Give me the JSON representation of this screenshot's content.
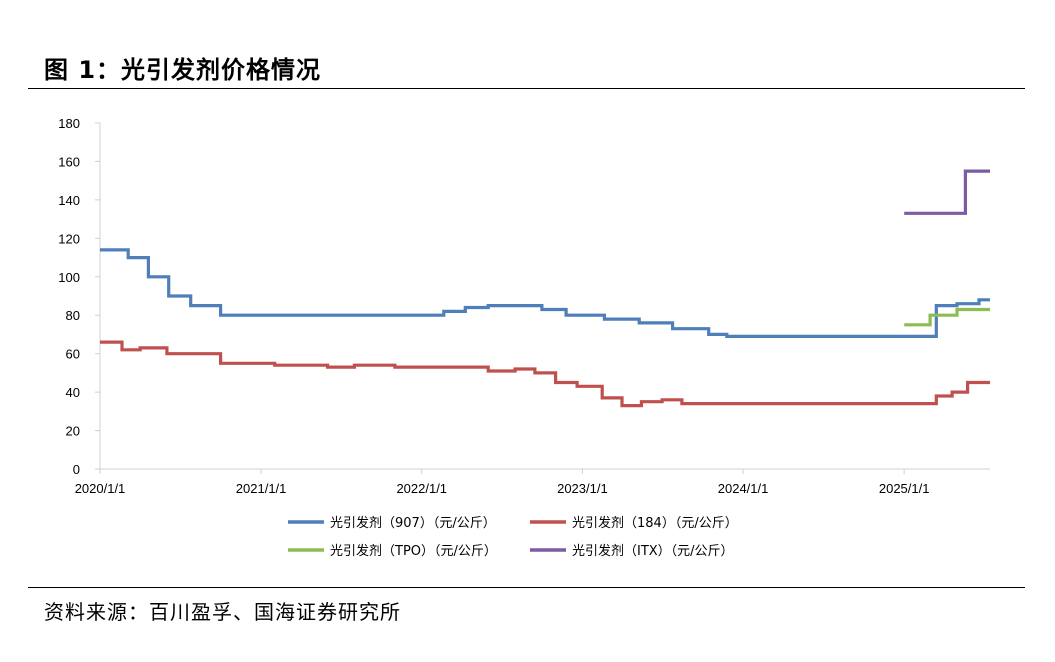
{
  "figure": {
    "title": "图 1：光引发剂价格情况",
    "source": "资料来源：百川盈孚、国海证券研究所"
  },
  "chart_data": {
    "type": "line",
    "title": "",
    "xlabel": "",
    "ylabel": "",
    "ylim": [
      0,
      180
    ],
    "yticks": [
      0,
      20,
      40,
      60,
      80,
      100,
      120,
      140,
      160,
      180
    ],
    "xlim": [
      "2020/1/1",
      "2025/7/15"
    ],
    "xticks": [
      "2020/1/1",
      "2021/1/1",
      "2022/1/1",
      "2023/1/1",
      "2024/1/1",
      "2025/1/1"
    ],
    "grid": false,
    "legend_position": "bottom",
    "series": [
      {
        "name": "光引发剂（907）（元/公斤）",
        "color": "#4e7fb8",
        "step": true,
        "points": [
          [
            "2020/1/1",
            114
          ],
          [
            "2020/3/5",
            110
          ],
          [
            "2020/4/20",
            100
          ],
          [
            "2020/6/5",
            90
          ],
          [
            "2020/7/25",
            85
          ],
          [
            "2020/10/1",
            80
          ],
          [
            "2021/12/5",
            80
          ],
          [
            "2022/2/20",
            82
          ],
          [
            "2022/4/10",
            84
          ],
          [
            "2022/6/1",
            85
          ],
          [
            "2022/10/1",
            83
          ],
          [
            "2022/11/25",
            80
          ],
          [
            "2023/2/20",
            78
          ],
          [
            "2023/5/10",
            76
          ],
          [
            "2023/7/25",
            73
          ],
          [
            "2023/10/15",
            70
          ],
          [
            "2023/11/25",
            69
          ],
          [
            "2025/3/1",
            69
          ],
          [
            "2025/3/15",
            85
          ],
          [
            "2025/5/1",
            86
          ],
          [
            "2025/6/20",
            88
          ],
          [
            "2025/7/15",
            88
          ]
        ]
      },
      {
        "name": "光引发剂（184）（元/公斤）",
        "color": "#c0504d",
        "step": true,
        "points": [
          [
            "2020/1/1",
            66
          ],
          [
            "2020/2/20",
            62
          ],
          [
            "2020/4/1",
            63
          ],
          [
            "2020/6/1",
            60
          ],
          [
            "2020/10/1",
            55
          ],
          [
            "2021/2/1",
            54
          ],
          [
            "2021/6/1",
            53
          ],
          [
            "2021/8/1",
            54
          ],
          [
            "2021/11/1",
            53
          ],
          [
            "2022/6/1",
            51
          ],
          [
            "2022/8/1",
            52
          ],
          [
            "2022/9/15",
            50
          ],
          [
            "2022/11/1",
            45
          ],
          [
            "2022/12/20",
            43
          ],
          [
            "2023/2/15",
            37
          ],
          [
            "2023/4/1",
            33
          ],
          [
            "2023/5/15",
            35
          ],
          [
            "2023/7/1",
            36
          ],
          [
            "2023/8/15",
            34
          ],
          [
            "2025/3/1",
            34
          ],
          [
            "2025/3/15",
            38
          ],
          [
            "2025/4/20",
            40
          ],
          [
            "2025/5/25",
            45
          ],
          [
            "2025/7/15",
            45
          ]
        ]
      },
      {
        "name": "光引发剂（TPO）（元/公斤）",
        "color": "#8cbd50",
        "step": true,
        "points": [
          [
            "2025/1/1",
            75
          ],
          [
            "2025/3/1",
            80
          ],
          [
            "2025/5/1",
            83
          ],
          [
            "2025/7/15",
            83
          ]
        ]
      },
      {
        "name": "光引发剂（ITX）（元/公斤）",
        "color": "#7b5ba1",
        "step": true,
        "points": [
          [
            "2025/1/1",
            133
          ],
          [
            "2025/5/20",
            155
          ],
          [
            "2025/7/15",
            155
          ]
        ]
      }
    ]
  }
}
